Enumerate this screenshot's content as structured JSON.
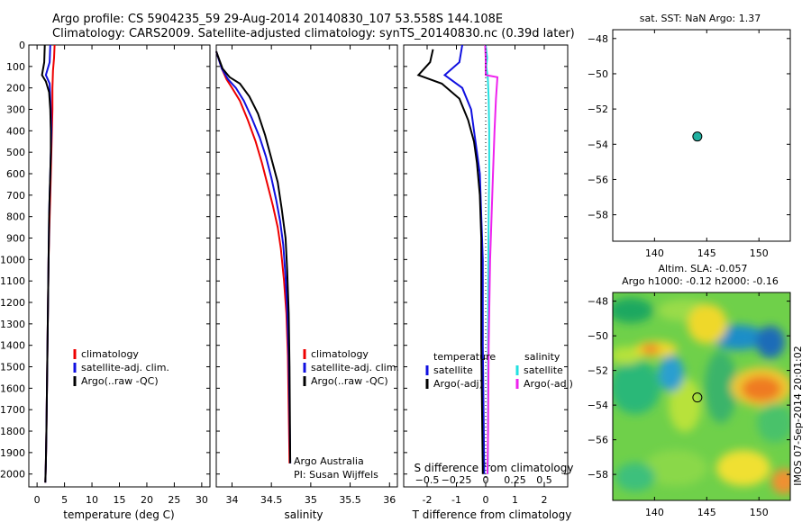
{
  "header": {
    "line1": "Argo profile: CS 5904235_59 29-Aug-2014 20140830_107 53.558S 144.108E",
    "line2": "Climatology: CARS2009. Satellite-adjusted climatology: synTS_20140830.nc (0.39d later)"
  },
  "colors": {
    "climatology": "#ee0000",
    "satellite": "#1010e0",
    "argo": "#000000",
    "sat_salinity": "#22e0e0",
    "argo_salinity": "#ee22ee",
    "marker": "#20b0a0"
  },
  "chart_data": [
    {
      "type": "line",
      "xlabel": "temperature (deg C)",
      "xticks": [
        0,
        5,
        10,
        15,
        20,
        25,
        30
      ],
      "xlim": [
        -1.5,
        31.5
      ],
      "yticks": [
        0,
        100,
        200,
        300,
        400,
        500,
        600,
        700,
        800,
        900,
        1000,
        1100,
        1200,
        1300,
        1400,
        1500,
        1600,
        1700,
        1800,
        1900,
        2000
      ],
      "ylim": [
        2060,
        0
      ],
      "legend": [
        "climatology",
        "satellite-adj. clim.",
        "Argo(..raw -QC)"
      ],
      "series": [
        {
          "name": "climatology",
          "color": "red",
          "x": [
            3.2,
            3.1,
            2.9,
            2.8,
            2.8,
            2.7,
            2.6,
            2.5,
            2.4,
            2.3,
            2.2,
            2.1,
            2.0,
            1.9,
            1.8,
            1.7,
            1.6,
            1.5
          ],
          "y": [
            0,
            60,
            120,
            200,
            300,
            400,
            500,
            600,
            700,
            800,
            900,
            1000,
            1200,
            1400,
            1600,
            1800,
            1950,
            2040
          ]
        },
        {
          "name": "satellite-adj. clim.",
          "color": "blue",
          "x": [
            2.4,
            2.3,
            1.6,
            2.3,
            2.5,
            2.6,
            2.5,
            2.4,
            2.3,
            2.2,
            2.1,
            2.0,
            1.9,
            1.8,
            1.7,
            1.6,
            1.5
          ],
          "y": [
            0,
            80,
            140,
            180,
            300,
            400,
            500,
            600,
            700,
            800,
            1000,
            1200,
            1400,
            1600,
            1800,
            1950,
            2040
          ]
        },
        {
          "name": "Argo(..raw -QC)",
          "color": "black",
          "x": [
            1.4,
            1.3,
            0.9,
            1.6,
            2.2,
            2.4,
            2.5,
            2.5,
            2.4,
            2.3,
            2.2,
            2.1,
            2.0,
            1.9,
            1.8,
            1.7,
            1.6,
            1.5
          ],
          "y": [
            0,
            80,
            140,
            170,
            220,
            300,
            400,
            500,
            600,
            700,
            800,
            1000,
            1200,
            1400,
            1600,
            1800,
            1950,
            2040
          ]
        }
      ]
    },
    {
      "type": "line",
      "xlabel": "salinity",
      "xticks": [
        34,
        34.5,
        35,
        35.5,
        36
      ],
      "xlim": [
        33.8,
        36.1
      ],
      "ylim": [
        2060,
        0
      ],
      "legend": [
        "climatology",
        "satellite-adj. clim.",
        "Argo(..raw -QC)"
      ],
      "annotation": [
        "Argo Australia",
        "PI: Susan Wijffels"
      ],
      "series": [
        {
          "name": "climatology",
          "color": "red",
          "x": [
            33.8,
            33.87,
            33.93,
            34.0,
            34.1,
            34.2,
            34.3,
            34.38,
            34.45,
            34.52,
            34.58,
            34.62,
            34.66,
            34.69,
            34.71,
            34.72,
            34.73
          ],
          "y": [
            30,
            110,
            160,
            200,
            260,
            350,
            450,
            550,
            650,
            750,
            850,
            950,
            1100,
            1250,
            1450,
            1700,
            1950
          ]
        },
        {
          "name": "satellite-adj. clim.",
          "color": "blue",
          "x": [
            33.8,
            33.87,
            33.95,
            34.05,
            34.15,
            34.25,
            34.35,
            34.43,
            34.5,
            34.56,
            34.61,
            34.65,
            34.68,
            34.7,
            34.72,
            34.73,
            34.74
          ],
          "y": [
            30,
            110,
            160,
            200,
            260,
            340,
            430,
            520,
            620,
            720,
            820,
            930,
            1080,
            1230,
            1450,
            1700,
            1950
          ]
        },
        {
          "name": "Argo(..raw -QC)",
          "color": "black",
          "x": [
            33.8,
            33.88,
            33.97,
            34.1,
            34.22,
            34.33,
            34.42,
            34.5,
            34.58,
            34.63,
            34.68,
            34.7,
            34.72,
            34.73,
            34.74
          ],
          "y": [
            30,
            110,
            150,
            180,
            240,
            320,
            420,
            530,
            640,
            760,
            900,
            1050,
            1250,
            1500,
            1950
          ]
        }
      ]
    },
    {
      "type": "line",
      "xlabel": "T difference from climatology",
      "xlabel_top": "S difference from climatology",
      "xticks": [
        -2,
        -1,
        0,
        1,
        2
      ],
      "xlim": [
        -2.8,
        2.8
      ],
      "xticks_top": [
        -0.5,
        -0.25,
        0,
        0.25,
        0.5
      ],
      "ylim": [
        2060,
        0
      ],
      "legend_left": [
        "temperature",
        "satellite",
        "Argo(-adj)"
      ],
      "legend_right": [
        "salinity",
        "satellite",
        "Argo(-adj)"
      ],
      "series": [
        {
          "name": "temperature satellite",
          "color": "blue",
          "x": [
            -0.8,
            -0.9,
            -1.4,
            -0.8,
            -0.5,
            -0.4,
            -0.3,
            -0.2,
            -0.15,
            -0.1,
            -0.1,
            -0.05
          ],
          "y": [
            0,
            80,
            140,
            200,
            300,
            400,
            500,
            600,
            800,
            1000,
            1400,
            2000
          ]
        },
        {
          "name": "temperature Argo(-adj)",
          "color": "black",
          "x": [
            -1.8,
            -1.9,
            -2.3,
            -1.5,
            -0.9,
            -0.6,
            -0.4,
            -0.3,
            -0.2,
            -0.15,
            -0.15,
            -0.1
          ],
          "y": [
            20,
            80,
            140,
            180,
            250,
            350,
            450,
            550,
            700,
            900,
            1400,
            2000
          ]
        },
        {
          "name": "salinity satellite",
          "color": "cyan",
          "x": [
            0.0,
            0.05,
            0.02,
            0.07,
            0.1,
            0.12,
            0.12,
            0.1,
            0.09,
            0.08,
            0.08,
            0.07
          ],
          "y": [
            0,
            60,
            100,
            150,
            250,
            400,
            600,
            800,
            1000,
            1400,
            1800,
            2000
          ]
        },
        {
          "name": "salinity Argo(-adj)",
          "color": "magenta",
          "x": [
            -0.02,
            0.0,
            0.0,
            0.4,
            0.35,
            0.3,
            0.25,
            0.2,
            0.15,
            0.1,
            0.08,
            0.06
          ],
          "y": [
            0,
            60,
            140,
            150,
            250,
            400,
            600,
            800,
            1000,
            1400,
            1800,
            2000
          ]
        }
      ]
    },
    {
      "type": "scatter",
      "title": "sat. SST: NaN Argo: 1.37",
      "xticks": [
        140,
        145,
        150
      ],
      "xlim": [
        136,
        153
      ],
      "yticks": [
        -48,
        -50,
        -52,
        -54,
        -56,
        -58
      ],
      "ylim": [
        -59.5,
        -47.5
      ],
      "points": [
        {
          "x": 144.1,
          "y": -53.56
        }
      ]
    },
    {
      "type": "heatmap",
      "title_line1": "Altim. SLA: -0.057",
      "title_line2": "Argo h1000: -0.12 h2000: -0.16",
      "xticks": [
        140,
        145,
        150
      ],
      "xlim": [
        136,
        153
      ],
      "yticks": [
        -48,
        -50,
        -52,
        -54,
        -56,
        -58
      ],
      "ylim": [
        -59.5,
        -47.5
      ],
      "points": [
        {
          "x": 144.1,
          "y": -53.56
        }
      ],
      "side_label": "IMOS 07-Sep-2014 20:01:02"
    }
  ]
}
